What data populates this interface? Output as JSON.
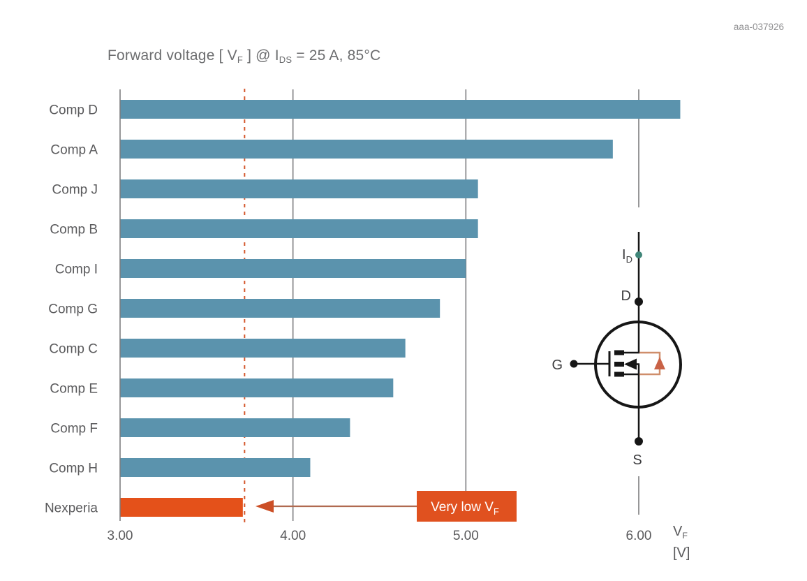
{
  "header": {
    "doc_id": "aaa-037926",
    "title": {
      "prefix": "Forward voltage [ V",
      "sub1": "F",
      "mid": " ] @ I",
      "sub2": "DS",
      "suffix": " = 25 A, 85°C"
    }
  },
  "chart_data": {
    "type": "bar",
    "orientation": "horizontal",
    "title": "Forward voltage [ VF ] @ IDS = 25 A, 85°C",
    "categories": [
      "Comp D",
      "Comp A",
      "Comp J",
      "Comp B",
      "Comp I",
      "Comp G",
      "Comp C",
      "Comp E",
      "Comp F",
      "Comp H",
      "Nexperia"
    ],
    "values": [
      6.24,
      5.85,
      5.07,
      5.07,
      5.0,
      4.85,
      4.65,
      4.58,
      4.33,
      4.1,
      3.71
    ],
    "xlim": [
      3.0,
      6.0
    ],
    "x_tick_values": [
      3,
      4,
      5,
      6
    ],
    "x_ticks": [
      "3.00",
      "4.00",
      "5.00",
      "6.00"
    ],
    "xlabel": {
      "main": "V",
      "sub": "F",
      "unit": "[V]"
    },
    "ylabel": "",
    "grid": true,
    "bar_color": "#5b93ad",
    "highlight_category": "Nexperia",
    "highlight_color": "#e4511a",
    "dashed_marker_value": 3.72,
    "dashed_marker_color": "#d4572b"
  },
  "annotation": {
    "text": "Very low V",
    "sub": "F",
    "box_color": "#e0511f",
    "text_color": "#ffffff",
    "arrow_color": "#b06a50",
    "arrowhead_color": "#cc4f26"
  },
  "circuit": {
    "labels": {
      "current": "I",
      "current_sub": "D",
      "drain": "D",
      "gate": "G",
      "source": "S"
    },
    "diode_loop_color": "#cf8e6b",
    "diode_fill_color": "#c96246",
    "current_dot_color": "#3f8578",
    "line_color": "#161616"
  }
}
